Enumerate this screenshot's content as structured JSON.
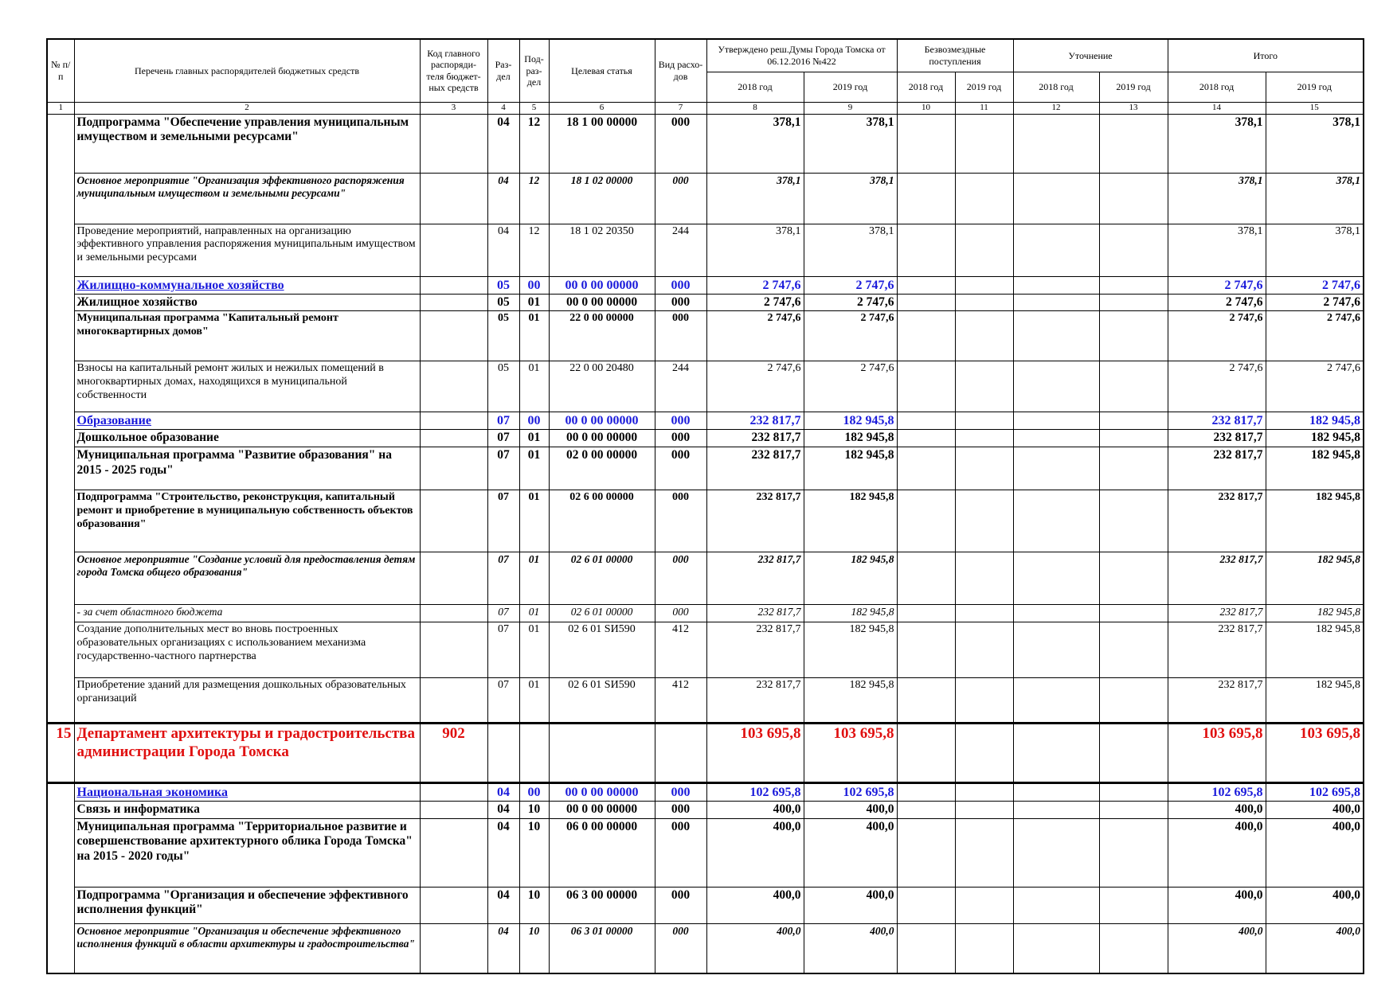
{
  "table": {
    "header": {
      "num": "№ п/п",
      "name": "Перечень главных распорядителей бюджетных средств",
      "code": "Код главного распоряди-теля бюджет-ных средств",
      "razdel": "Раз-дел",
      "podrazdel": "Под-раз-дел",
      "target": "Целевая статья",
      "vid": "Вид расхо-дов",
      "groups": [
        "Утверждено реш.Думы Города Томска от 06.12.2016 №422",
        "Безвозмездные поступления",
        "Уточнение",
        "Итого"
      ],
      "years": [
        "2018 год",
        "2019 год",
        "2018 год",
        "2019 год",
        "2018 год",
        "2019 год",
        "2018 год",
        "2019 год"
      ],
      "colnums": [
        1,
        2,
        3,
        4,
        5,
        6,
        7,
        8,
        9,
        10,
        11,
        12,
        13,
        14,
        15
      ]
    },
    "rows": [
      {
        "name": "Подпрограмма \"Обеспечение управления муниципальным имуществом и земельными ресурсами\"",
        "r": "04",
        "pr": "12",
        "cs": "18 1 00 00000",
        "vr": "000",
        "v8": "378,1",
        "v9": "378,1",
        "v14": "378,1",
        "v15": "378,1"
      },
      {
        "name": "Основное мероприятие \"Организация эффективного распоряжения муниципальным имуществом и земельными ресурсами\"",
        "r": "04",
        "pr": "12",
        "cs": "18 1 02 00000",
        "vr": "000",
        "v8": "378,1",
        "v9": "378,1",
        "v14": "378,1",
        "v15": "378,1"
      },
      {
        "name": "Проведение мероприятий, направленных на организацию эффективного управления распоряжения муниципальным имуществом и земельными ресурсами",
        "r": "04",
        "pr": "12",
        "cs": "18 1 02 20350",
        "vr": "244",
        "v8": "378,1",
        "v9": "378,1",
        "v14": "378,1",
        "v15": "378,1"
      },
      {
        "name": "Жилищно-коммунальное хозяйство",
        "r": "05",
        "pr": "00",
        "cs": "00 0 00 00000",
        "vr": "000",
        "v8": "2 747,6",
        "v9": "2 747,6",
        "v14": "2 747,6",
        "v15": "2 747,6"
      },
      {
        "name": "Жилищное хозяйство",
        "r": "05",
        "pr": "01",
        "cs": "00 0 00 00000",
        "vr": "000",
        "v8": "2 747,6",
        "v9": "2 747,6",
        "v14": "2 747,6",
        "v15": "2 747,6"
      },
      {
        "name": "Муниципальная программа \"Капитальный ремонт многоквартирных домов\"",
        "r": "05",
        "pr": "01",
        "cs": "22 0 00 00000",
        "vr": "000",
        "v8": "2 747,6",
        "v9": "2 747,6",
        "v14": "2 747,6",
        "v15": "2 747,6"
      },
      {
        "name": "Взносы на капитальный ремонт жилых и нежилых помещений в многоквартирных домах, находящихся в муниципальной собственности",
        "r": "05",
        "pr": "01",
        "cs": "22 0 00 20480",
        "vr": "244",
        "v8": "2 747,6",
        "v9": "2 747,6",
        "v14": "2 747,6",
        "v15": "2 747,6"
      },
      {
        "name": "Образование",
        "r": "07",
        "pr": "00",
        "cs": "00 0 00 00000",
        "vr": "000",
        "v8": "232 817,7",
        "v9": "182 945,8",
        "v14": "232 817,7",
        "v15": "182 945,8"
      },
      {
        "name": "Дошкольное образование",
        "r": "07",
        "pr": "01",
        "cs": "00 0 00 00000",
        "vr": "000",
        "v8": "232 817,7",
        "v9": "182 945,8",
        "v14": "232 817,7",
        "v15": "182 945,8"
      },
      {
        "name": "Муниципальная программа \"Развитие образования\" на 2015 - 2025 годы\"",
        "r": "07",
        "pr": "01",
        "cs": "02 0 00 00000",
        "vr": "000",
        "v8": "232 817,7",
        "v9": "182 945,8",
        "v14": "232 817,7",
        "v15": "182 945,8"
      },
      {
        "name": "Подпрограмма \"Строительство, реконструкция, капитальный ремонт и приобретение в муниципальную собственность объектов образования\"",
        "r": "07",
        "pr": "01",
        "cs": "02 6 00 00000",
        "vr": "000",
        "v8": "232 817,7",
        "v9": "182 945,8",
        "v14": "232 817,7",
        "v15": "182 945,8"
      },
      {
        "name": "Основное мероприятие  \"Создание условий для предоставления детям города Томска общего образования\"",
        "r": "07",
        "pr": "01",
        "cs": "02 6 01 00000",
        "vr": "000",
        "v8": "232 817,7",
        "v9": "182 945,8",
        "v14": "232 817,7",
        "v15": "182 945,8"
      },
      {
        "name": "- за счет областного бюджета",
        "r": "07",
        "pr": "01",
        "cs": "02 6 01 00000",
        "vr": "000",
        "v8": "232 817,7",
        "v9": "182 945,8",
        "v14": "232 817,7",
        "v15": "182 945,8"
      },
      {
        "name": "Создание дополнительных мест во вновь построенных образовательных организациях с использованием механизма государственно-частного партнерства",
        "r": "07",
        "pr": "01",
        "cs": "02 6 01 SИ590",
        "vr": "412",
        "v8": "232 817,7",
        "v9": "182 945,8",
        "v14": "232 817,7",
        "v15": "182 945,8"
      },
      {
        "name": "Приобретение зданий для размещения дошкольных образовательных организаций",
        "r": "07",
        "pr": "01",
        "cs": "02 6 01 SИ590",
        "vr": "412",
        "v8": "232 817,7",
        "v9": "182 945,8",
        "v14": "232 817,7",
        "v15": "182 945,8"
      },
      {
        "n": "15",
        "name": "Департамент архитектуры и градостроительства администрации Города Томска",
        "code": "902",
        "v8": "103 695,8",
        "v9": "103 695,8",
        "v14": "103 695,8",
        "v15": "103 695,8"
      },
      {
        "name": "Национальная экономика",
        "r": "04",
        "pr": "00",
        "cs": "00 0 00 00000",
        "vr": "000",
        "v8": "102 695,8",
        "v9": "102 695,8",
        "v14": "102 695,8",
        "v15": "102 695,8"
      },
      {
        "name": "Связь и информатика",
        "r": "04",
        "pr": "10",
        "cs": "00 0 00 00000",
        "vr": "000",
        "v8": "400,0",
        "v9": "400,0",
        "v14": "400,0",
        "v15": "400,0"
      },
      {
        "name": "Муниципальная программа \"Территориальное развитие и совершенствование архитектурного облика Города Томска\" на 2015 - 2020 годы\"",
        "r": "04",
        "pr": "10",
        "cs": "06 0 00 00000",
        "vr": "000",
        "v8": "400,0",
        "v9": "400,0",
        "v14": "400,0",
        "v15": "400,0"
      },
      {
        "name": "Подпрограмма \"Организация и обеспечение эффективного исполнения функций\"",
        "r": "04",
        "pr": "10",
        "cs": "06 3 00 00000",
        "vr": "000",
        "v8": "400,0",
        "v9": "400,0",
        "v14": "400,0",
        "v15": "400,0"
      },
      {
        "name": "Основное мероприятие \"Организация и обеспечение эффективного исполнения функций в области архитектуры и градостроительства\"",
        "r": "04",
        "pr": "10",
        "cs": "06 3 01 00000",
        "vr": "000",
        "v8": "400,0",
        "v9": "400,0",
        "v14": "400,0",
        "v15": "400,0"
      }
    ]
  }
}
